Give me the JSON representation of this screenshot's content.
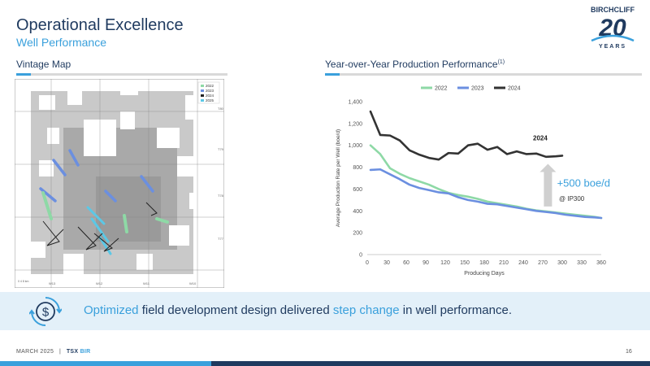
{
  "header": {
    "title": "Operational Excellence",
    "subtitle": "Well Performance",
    "logo_text": "BIRCHCLIFF",
    "logo_number": "20",
    "logo_word": "YEARS"
  },
  "left_section": {
    "heading": "Vintage Map",
    "legend": [
      {
        "label": "2022",
        "color": "#8ed9a6"
      },
      {
        "label": "2023",
        "color": "#6b8fe0"
      },
      {
        "label": "2024",
        "color": "#222222"
      },
      {
        "label": "2025",
        "color": "#5bc8e6"
      }
    ],
    "township_labels": [
      "T80",
      "T79",
      "T78",
      "T77"
    ],
    "range_labels": [
      "W13",
      "W12",
      "W11",
      "W10"
    ],
    "scale_label": "0 4 8 km"
  },
  "right_section": {
    "heading": "Year-over-Year Production Performance",
    "heading_sup": "(1)"
  },
  "chart_data": {
    "type": "line",
    "title": "Year-over-Year Production Performance",
    "xlabel": "Producing Days",
    "ylabel": "Average Production Rate per Well (boe/d)",
    "xlim": [
      0,
      360
    ],
    "ylim": [
      0,
      1400
    ],
    "x_ticks": [
      0,
      30,
      60,
      90,
      120,
      150,
      180,
      210,
      240,
      270,
      300,
      330,
      360
    ],
    "y_ticks": [
      0,
      200,
      400,
      600,
      800,
      1000,
      1200,
      1400
    ],
    "y_tick_labels": [
      "0",
      "200",
      "400",
      "600",
      "800",
      "1,000",
      "1,200",
      "1,400"
    ],
    "grid": false,
    "legend_position": "top",
    "series": [
      {
        "name": "2022",
        "color": "#8ed9a6",
        "x": [
          5,
          20,
          35,
          50,
          65,
          80,
          95,
          110,
          125,
          140,
          155,
          170,
          185,
          200,
          215,
          230,
          245,
          260,
          275,
          290,
          305,
          320,
          335,
          350,
          360
        ],
        "y": [
          1000,
          920,
          790,
          740,
          700,
          670,
          640,
          600,
          565,
          545,
          530,
          510,
          485,
          470,
          455,
          440,
          420,
          405,
          395,
          385,
          375,
          365,
          355,
          345,
          335
        ]
      },
      {
        "name": "2023",
        "color": "#6b8fe0",
        "x": [
          5,
          20,
          35,
          50,
          65,
          80,
          95,
          110,
          125,
          140,
          155,
          170,
          185,
          200,
          215,
          230,
          245,
          260,
          275,
          290,
          305,
          320,
          335,
          350,
          360
        ],
        "y": [
          775,
          780,
          735,
          690,
          640,
          610,
          590,
          570,
          560,
          525,
          500,
          485,
          465,
          460,
          445,
          430,
          415,
          400,
          390,
          380,
          365,
          355,
          345,
          340,
          335
        ]
      },
      {
        "name": "2024",
        "color": "#333333",
        "x": [
          5,
          20,
          35,
          50,
          65,
          80,
          95,
          110,
          125,
          140,
          155,
          170,
          185,
          200,
          215,
          230,
          245,
          260,
          275,
          290,
          300
        ],
        "y": [
          1310,
          1095,
          1090,
          1045,
          955,
          915,
          885,
          870,
          930,
          925,
          1000,
          1015,
          960,
          985,
          920,
          945,
          920,
          925,
          895,
          900,
          905
        ]
      }
    ],
    "annotations": {
      "series_label": "2024",
      "uplift_value": "+500 boe/d",
      "uplift_sub": "@ IP300",
      "arrow_color": "#d0d0d0"
    }
  },
  "banner": {
    "part1": "Optimized",
    "part2": " field development design delivered ",
    "part3": "step change",
    "part4": " in well performance."
  },
  "footer": {
    "date": "MARCH 2025",
    "separator": "|",
    "exchange": "TSX",
    "ticker": "BIR",
    "page_number": "16"
  },
  "colors": {
    "navy": "#1f3a5f",
    "accent": "#3aa0dc",
    "banner_bg": "#e3f0f9"
  }
}
